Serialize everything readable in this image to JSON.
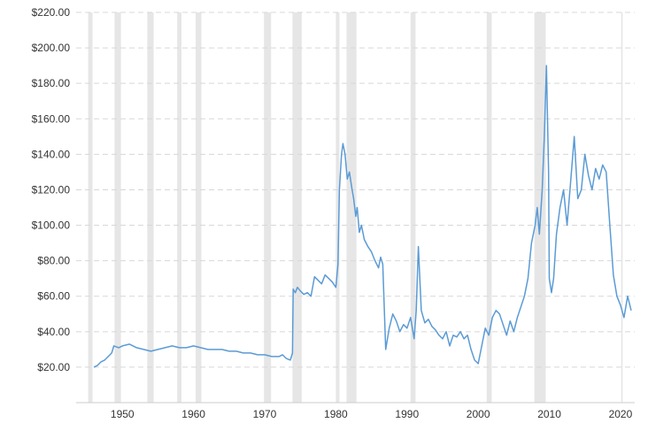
{
  "chart_data": {
    "type": "line",
    "title": "",
    "xlabel": "",
    "ylabel": "",
    "xlim": [
      1943.5,
      2022
    ],
    "ylim": [
      0,
      220
    ],
    "y_ticks": [
      {
        "value": 20,
        "label": "$20.00"
      },
      {
        "value": 40,
        "label": "$40.00"
      },
      {
        "value": 60,
        "label": "$60.00"
      },
      {
        "value": 80,
        "label": "$80.00"
      },
      {
        "value": 100,
        "label": "$100.00"
      },
      {
        "value": 120,
        "label": "$120.00"
      },
      {
        "value": 140,
        "label": "$140.00"
      },
      {
        "value": 160,
        "label": "$160.00"
      },
      {
        "value": 180,
        "label": "$180.00"
      },
      {
        "value": 200,
        "label": "$200.00"
      },
      {
        "value": 220,
        "label": "$220.00"
      }
    ],
    "x_ticks": [
      {
        "value": 1950,
        "label": "1950"
      },
      {
        "value": 1960,
        "label": "1960"
      },
      {
        "value": 1970,
        "label": "1970"
      },
      {
        "value": 1980,
        "label": "1980"
      },
      {
        "value": 1990,
        "label": "1990"
      },
      {
        "value": 2000,
        "label": "2000"
      },
      {
        "value": 2010,
        "label": "2010"
      },
      {
        "value": 2020,
        "label": "2020"
      }
    ],
    "grid": true,
    "colors": {
      "line": "#5b9bd5",
      "band": "#e6e6e6",
      "grid": "#d8d8d8",
      "axis": "#cccccc",
      "text": "#333333"
    },
    "shaded_periods": [
      [
        1945.2,
        1945.8
      ],
      [
        1948.9,
        1949.8
      ],
      [
        1953.5,
        1954.4
      ],
      [
        1957.7,
        1958.3
      ],
      [
        1960.3,
        1961.1
      ],
      [
        1969.9,
        1970.9
      ],
      [
        1973.9,
        1975.2
      ],
      [
        1980.0,
        1980.5
      ],
      [
        1981.5,
        1982.9
      ],
      [
        1990.5,
        1991.2
      ],
      [
        2001.2,
        2001.9
      ],
      [
        2007.9,
        2009.5
      ],
      [
        2020.1,
        2020.3
      ]
    ],
    "series": [
      {
        "points": [
          [
            1946.0,
            20
          ],
          [
            1946.5,
            21
          ],
          [
            1947.0,
            23
          ],
          [
            1947.5,
            24
          ],
          [
            1948.0,
            26
          ],
          [
            1948.5,
            28
          ],
          [
            1948.8,
            32
          ],
          [
            1949.5,
            31
          ],
          [
            1950.0,
            32
          ],
          [
            1951.0,
            33
          ],
          [
            1952.0,
            31
          ],
          [
            1953.0,
            30
          ],
          [
            1954.0,
            29
          ],
          [
            1955.0,
            30
          ],
          [
            1956.0,
            31
          ],
          [
            1957.0,
            32
          ],
          [
            1958.0,
            31
          ],
          [
            1959.0,
            31
          ],
          [
            1960.0,
            32
          ],
          [
            1961.0,
            31
          ],
          [
            1962.0,
            30
          ],
          [
            1963.0,
            30
          ],
          [
            1964.0,
            30
          ],
          [
            1965.0,
            29
          ],
          [
            1966.0,
            29
          ],
          [
            1967.0,
            28
          ],
          [
            1968.0,
            28
          ],
          [
            1969.0,
            27
          ],
          [
            1970.0,
            27
          ],
          [
            1971.0,
            26
          ],
          [
            1972.0,
            26
          ],
          [
            1972.5,
            27
          ],
          [
            1973.0,
            25
          ],
          [
            1973.6,
            24
          ],
          [
            1973.9,
            28
          ],
          [
            1974.0,
            64
          ],
          [
            1974.3,
            62
          ],
          [
            1974.6,
            65
          ],
          [
            1975.0,
            63
          ],
          [
            1975.5,
            61
          ],
          [
            1976.0,
            62
          ],
          [
            1976.5,
            60
          ],
          [
            1977.0,
            71
          ],
          [
            1977.5,
            69
          ],
          [
            1978.0,
            67
          ],
          [
            1978.5,
            72
          ],
          [
            1979.0,
            70
          ],
          [
            1979.5,
            68
          ],
          [
            1980.0,
            65
          ],
          [
            1980.3,
            78
          ],
          [
            1980.5,
            120
          ],
          [
            1980.8,
            140
          ],
          [
            1981.0,
            146
          ],
          [
            1981.3,
            140
          ],
          [
            1981.6,
            126
          ],
          [
            1981.9,
            130
          ],
          [
            1982.2,
            122
          ],
          [
            1982.5,
            115
          ],
          [
            1982.8,
            105
          ],
          [
            1983.0,
            110
          ],
          [
            1983.3,
            96
          ],
          [
            1983.6,
            100
          ],
          [
            1984.0,
            92
          ],
          [
            1984.5,
            88
          ],
          [
            1985.0,
            85
          ],
          [
            1985.5,
            80
          ],
          [
            1986.0,
            76
          ],
          [
            1986.3,
            82
          ],
          [
            1986.6,
            78
          ],
          [
            1987.0,
            30
          ],
          [
            1987.5,
            42
          ],
          [
            1988.0,
            50
          ],
          [
            1988.5,
            46
          ],
          [
            1989.0,
            40
          ],
          [
            1989.5,
            44
          ],
          [
            1990.0,
            42
          ],
          [
            1990.5,
            48
          ],
          [
            1991.0,
            36
          ],
          [
            1991.3,
            52
          ],
          [
            1991.6,
            88
          ],
          [
            1992.0,
            52
          ],
          [
            1992.5,
            45
          ],
          [
            1993.0,
            47
          ],
          [
            1993.5,
            43
          ],
          [
            1994.0,
            41
          ],
          [
            1994.5,
            38
          ],
          [
            1995.0,
            36
          ],
          [
            1995.5,
            40
          ],
          [
            1996.0,
            32
          ],
          [
            1996.5,
            38
          ],
          [
            1997.0,
            37
          ],
          [
            1997.5,
            40
          ],
          [
            1998.0,
            36
          ],
          [
            1998.5,
            38
          ],
          [
            1999.0,
            30
          ],
          [
            1999.5,
            24
          ],
          [
            2000.0,
            22
          ],
          [
            2000.5,
            32
          ],
          [
            2001.0,
            42
          ],
          [
            2001.5,
            38
          ],
          [
            2002.0,
            48
          ],
          [
            2002.5,
            52
          ],
          [
            2003.0,
            50
          ],
          [
            2003.5,
            44
          ],
          [
            2004.0,
            38
          ],
          [
            2004.5,
            46
          ],
          [
            2005.0,
            40
          ],
          [
            2005.5,
            48
          ],
          [
            2006.0,
            54
          ],
          [
            2006.5,
            60
          ],
          [
            2007.0,
            70
          ],
          [
            2007.5,
            90
          ],
          [
            2008.0,
            100
          ],
          [
            2008.3,
            110
          ],
          [
            2008.6,
            95
          ],
          [
            2009.0,
            120
          ],
          [
            2009.3,
            150
          ],
          [
            2009.6,
            190
          ],
          [
            2009.9,
            130
          ],
          [
            2010.0,
            70
          ],
          [
            2010.3,
            62
          ],
          [
            2010.6,
            70
          ],
          [
            2011.0,
            95
          ],
          [
            2011.5,
            110
          ],
          [
            2012.0,
            120
          ],
          [
            2012.5,
            100
          ],
          [
            2013.0,
            125
          ],
          [
            2013.5,
            150
          ],
          [
            2014.0,
            115
          ],
          [
            2014.5,
            120
          ],
          [
            2015.0,
            140
          ],
          [
            2015.5,
            128
          ],
          [
            2016.0,
            120
          ],
          [
            2016.5,
            132
          ],
          [
            2017.0,
            126
          ],
          [
            2017.5,
            134
          ],
          [
            2018.0,
            130
          ],
          [
            2018.5,
            100
          ],
          [
            2019.0,
            72
          ],
          [
            2019.5,
            60
          ],
          [
            2020.0,
            55
          ],
          [
            2020.5,
            48
          ],
          [
            2021.0,
            60
          ],
          [
            2021.5,
            52
          ]
        ]
      }
    ]
  }
}
